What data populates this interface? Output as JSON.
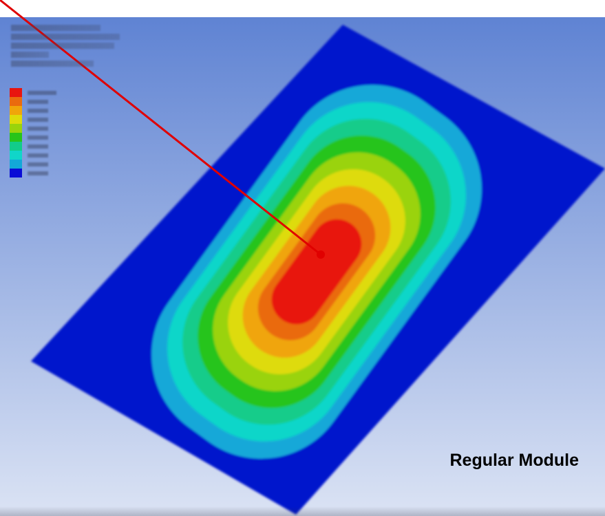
{
  "viewport": {
    "background_top": "#5f83d3",
    "background_bottom": "#dbe3f4"
  },
  "info_block": {
    "lines": [
      "",
      "",
      "",
      "",
      ""
    ]
  },
  "legend": {
    "title": "",
    "items": [
      {
        "value": "",
        "color": "#e8150f"
      },
      {
        "value": "",
        "color": "#ea6b0e"
      },
      {
        "value": "",
        "color": "#f0a50a"
      },
      {
        "value": "",
        "color": "#dedb0a"
      },
      {
        "value": "",
        "color": "#9ad30c"
      },
      {
        "value": "",
        "color": "#27c41a"
      },
      {
        "value": "",
        "color": "#12cc8a"
      },
      {
        "value": "",
        "color": "#10d6c9"
      },
      {
        "value": "",
        "color": "#13a8d8"
      },
      {
        "value": "",
        "color": "#0a0dd6"
      }
    ]
  },
  "contour_plot": {
    "plate_color": "#0612cc",
    "bands": [
      {
        "color": "#13a8d8"
      },
      {
        "color": "#10d6c9"
      },
      {
        "color": "#12cc8a"
      },
      {
        "color": "#27c41a"
      },
      {
        "color": "#9ad30c"
      },
      {
        "color": "#dedb0a"
      },
      {
        "color": "#f0a50a"
      },
      {
        "color": "#ea6b0e"
      },
      {
        "color": "#e8150f"
      }
    ]
  },
  "annotation": {
    "color": "#e00000"
  },
  "module_label": "Regular Module"
}
